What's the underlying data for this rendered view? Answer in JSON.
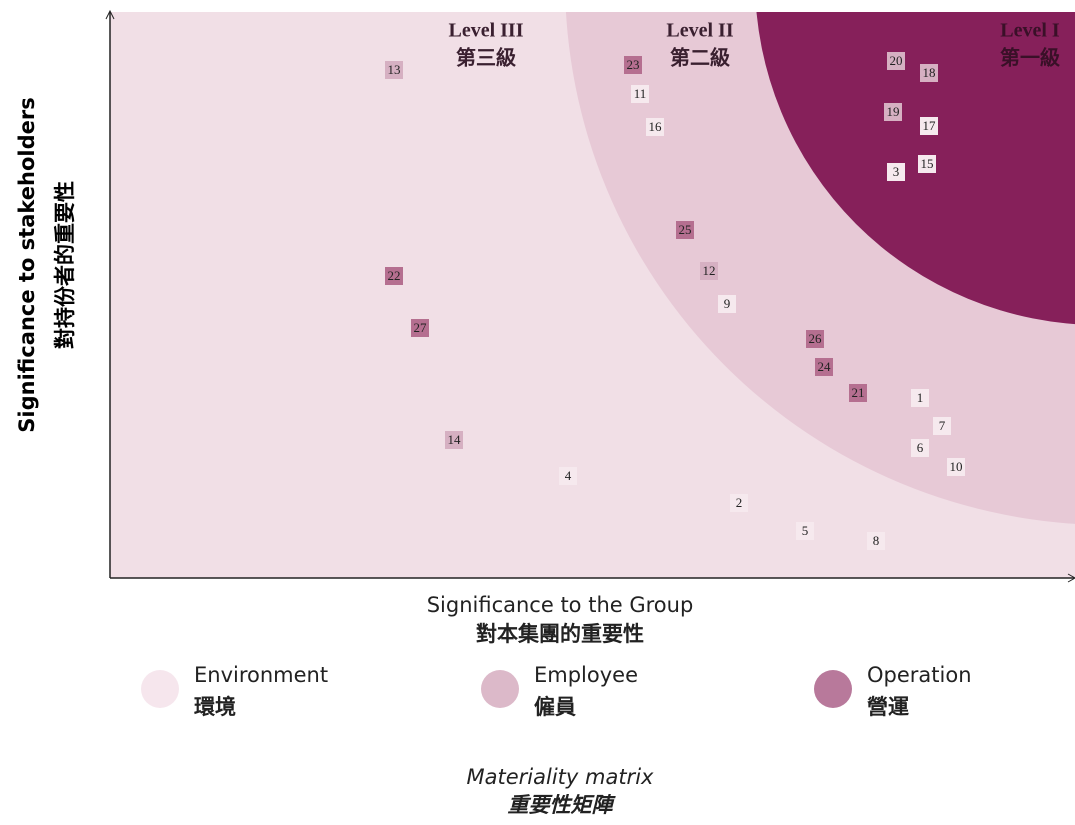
{
  "axes": {
    "y_en": "Significance to stakeholders",
    "y_zh": "對持份者的重要性",
    "x_en": "Significance to the Group",
    "x_zh": "對本集團的重要性"
  },
  "levels": [
    {
      "en": "Level III",
      "zh": "第三級"
    },
    {
      "en": "Level II",
      "zh": "第二級"
    },
    {
      "en": "Level I",
      "zh": "第一級"
    }
  ],
  "legend": [
    {
      "en": "Environment",
      "zh": "環境",
      "items": [
        "11",
        "16",
        "17",
        "3",
        "15",
        "9",
        "1",
        "7",
        "6",
        "10",
        "4",
        "2",
        "5",
        "8"
      ]
    },
    {
      "en": "Employee",
      "zh": "僱員",
      "items": [
        "13",
        "20",
        "18",
        "19",
        "12",
        "14"
      ]
    },
    {
      "en": "Operation",
      "zh": "營運",
      "items": [
        "23",
        "25",
        "22",
        "27",
        "26",
        "24",
        "21"
      ]
    }
  ],
  "caption": {
    "en": "Materiality matrix",
    "zh": "重要性矩陣"
  }
}
